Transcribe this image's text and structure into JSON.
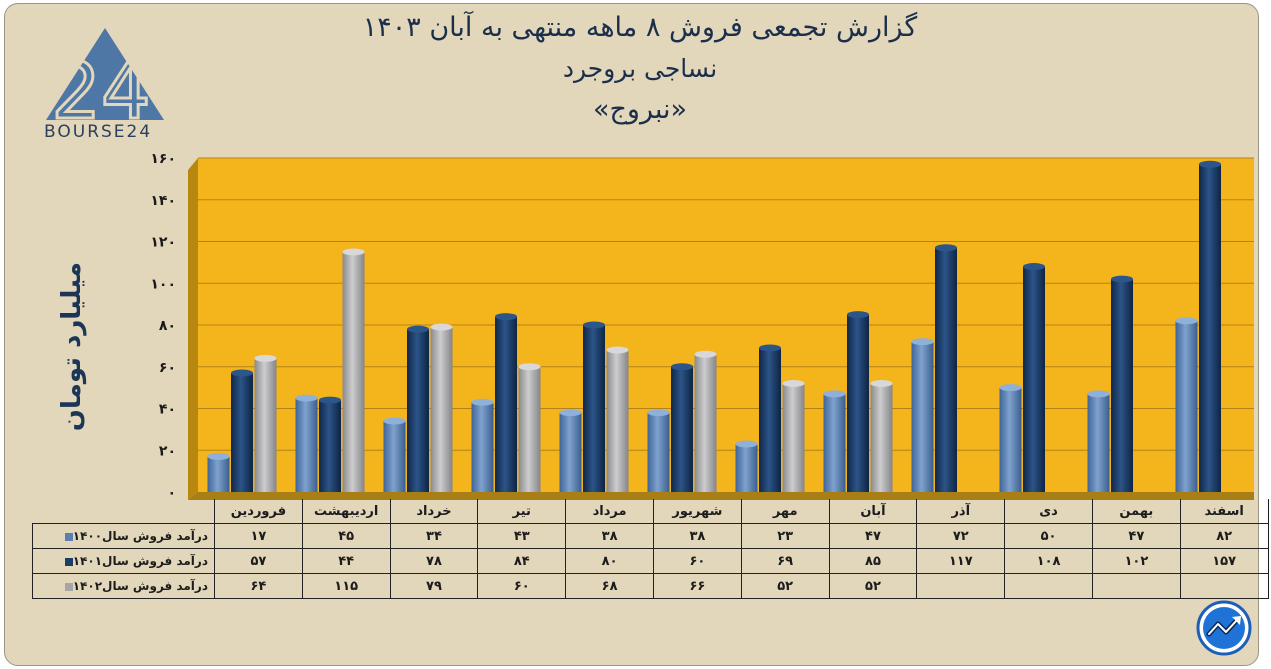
{
  "header": {
    "title_line1": "گزارش تجمعی فروش ۸ ماهه منتهی به آبان ۱۴۰۳",
    "title_line2": "نساجی بروجرد",
    "title_line3": "«نبروج»"
  },
  "logo": {
    "text": "BOURSE24",
    "mark": "24",
    "icon": "triangle-logo-icon"
  },
  "corner_icon": "trend-chart-icon",
  "chart_data": {
    "type": "bar",
    "ylabel": "میلیارد تومان",
    "ylim": [
      0,
      160
    ],
    "y_ticks": [
      0,
      20,
      40,
      60,
      80,
      100,
      120,
      140,
      160
    ],
    "y_tick_labels": [
      "۰",
      "۲۰",
      "۴۰",
      "۶۰",
      "۸۰",
      "۱۰۰",
      "۱۲۰",
      "۱۴۰",
      "۱۶۰"
    ],
    "categories": [
      "فروردین",
      "اردیبهشت",
      "خرداد",
      "تیر",
      "مرداد",
      "شهریور",
      "مهر",
      "آبان",
      "آذر",
      "دی",
      "بهمن",
      "اسفند"
    ],
    "plot_background": "#f4b41c",
    "legend_position": "table-below",
    "series": [
      {
        "name": "درآمد فروش سال۱۴۰۰",
        "color": "#5b7fae",
        "values": [
          17,
          45,
          34,
          43,
          38,
          38,
          23,
          47,
          72,
          50,
          47,
          82
        ],
        "labels": [
          "۱۷",
          "۴۵",
          "۳۴",
          "۴۳",
          "۳۸",
          "۳۸",
          "۲۳",
          "۴۷",
          "۷۲",
          "۵۰",
          "۴۷",
          "۸۲"
        ]
      },
      {
        "name": "درآمد فروش سال۱۴۰۱",
        "color": "#1b3d66",
        "values": [
          57,
          44,
          78,
          84,
          80,
          60,
          69,
          85,
          117,
          108,
          102,
          157
        ],
        "labels": [
          "۵۷",
          "۴۴",
          "۷۸",
          "۸۴",
          "۸۰",
          "۶۰",
          "۶۹",
          "۸۵",
          "۱۱۷",
          "۱۰۸",
          "۱۰۲",
          "۱۵۷"
        ]
      },
      {
        "name": "درآمد فروش سال۱۴۰۲",
        "color": "#a5a5a7",
        "values": [
          64,
          115,
          79,
          60,
          68,
          66,
          52,
          52,
          null,
          null,
          null,
          null
        ],
        "labels": [
          "۶۴",
          "۱۱۵",
          "۷۹",
          "۶۰",
          "۶۸",
          "۶۶",
          "۵۲",
          "۵۲",
          "",
          "",
          "",
          ""
        ]
      }
    ]
  }
}
